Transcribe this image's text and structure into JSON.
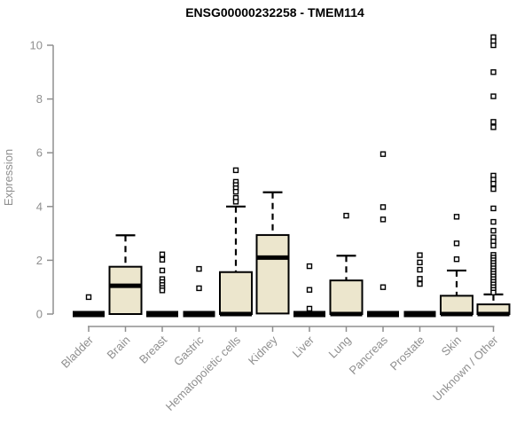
{
  "title": "ENSG00000232258 - TMEM114",
  "chart_data": {
    "type": "boxplot",
    "title": "ENSG00000232258 - TMEM114",
    "ylabel": "Expression",
    "ylim": [
      0,
      10
    ],
    "yticks": [
      0,
      2,
      4,
      6,
      8,
      10
    ],
    "grid": false,
    "legend": "none",
    "colors": {
      "box_fill": "#ece6cd",
      "box_stroke": "#000000",
      "median": "#000000",
      "axis": "#8f8f8f",
      "tick_label": "#8f8f8f",
      "title": "#000000",
      "background": "#ffffff"
    },
    "categories": [
      "Bladder",
      "Brain",
      "Breast",
      "Gastric",
      "Hematopoietic cells",
      "Kidney",
      "Liver",
      "Lung",
      "Pancreas",
      "Prostate",
      "Skin",
      "Unknown / Other"
    ],
    "series": [
      {
        "name": "Bladder",
        "flat": true,
        "q1": 0,
        "median": 0,
        "q3": 0,
        "whisker_low": 0,
        "whisker_high": 0,
        "outliers": [
          0.63
        ]
      },
      {
        "name": "Brain",
        "flat": false,
        "q1": 0,
        "median": 1.05,
        "q3": 1.76,
        "whisker_low": 0,
        "whisker_high": 2.93,
        "outliers": []
      },
      {
        "name": "Breast",
        "flat": true,
        "q1": 0,
        "median": 0,
        "q3": 0,
        "whisker_low": 0,
        "whisker_high": 0,
        "outliers": [
          2.22,
          2.02,
          1.62,
          1.3,
          1.19,
          1.08,
          0.97,
          0.88
        ]
      },
      {
        "name": "Gastric",
        "flat": true,
        "q1": 0,
        "median": 0,
        "q3": 0,
        "whisker_low": 0,
        "whisker_high": 0,
        "outliers": [
          1.68,
          0.96
        ]
      },
      {
        "name": "Hematopoietic cells",
        "flat": false,
        "q1": 0,
        "median": 0,
        "q3": 1.56,
        "whisker_low": 0,
        "whisker_high": 4.0,
        "outliers": [
          5.35,
          4.92,
          4.8,
          4.68,
          4.55,
          4.32,
          4.18
        ]
      },
      {
        "name": "Kidney",
        "flat": false,
        "q1": 0.02,
        "median": 2.1,
        "q3": 2.94,
        "whisker_low": 0,
        "whisker_high": 4.53,
        "outliers": []
      },
      {
        "name": "Liver",
        "flat": true,
        "q1": 0,
        "median": 0,
        "q3": 0,
        "whisker_low": 0,
        "whisker_high": 0,
        "outliers": [
          1.78,
          0.9,
          0.2
        ]
      },
      {
        "name": "Lung",
        "flat": false,
        "q1": 0,
        "median": 0,
        "q3": 1.25,
        "whisker_low": 0,
        "whisker_high": 2.17,
        "outliers": [
          3.66
        ]
      },
      {
        "name": "Pancreas",
        "flat": true,
        "q1": 0,
        "median": 0,
        "q3": 0,
        "whisker_low": 0,
        "whisker_high": 0,
        "outliers": [
          5.95,
          3.98,
          3.52,
          1.0
        ]
      },
      {
        "name": "Prostate",
        "flat": true,
        "q1": 0,
        "median": 0,
        "q3": 0,
        "whisker_low": 0,
        "whisker_high": 0,
        "outliers": [
          2.19,
          1.92,
          1.65,
          1.31,
          1.12
        ]
      },
      {
        "name": "Skin",
        "flat": false,
        "q1": 0,
        "median": 0,
        "q3": 0.68,
        "whisker_low": 0,
        "whisker_high": 1.62,
        "outliers": [
          3.62,
          2.63,
          2.04
        ]
      },
      {
        "name": "Unknown / Other",
        "flat": false,
        "q1": 0,
        "median": 0,
        "q3": 0.36,
        "whisker_low": 0,
        "whisker_high": 0.73,
        "outliers": [
          10.3,
          10.15,
          10.0,
          9.0,
          8.1,
          7.15,
          6.95,
          5.15,
          5.0,
          4.85,
          4.65,
          3.93,
          3.43,
          3.1,
          2.85,
          2.7,
          2.55,
          2.2,
          2.1,
          2.0,
          1.9,
          1.8,
          1.7,
          1.6,
          1.5,
          1.4,
          1.3,
          1.2,
          1.1,
          1.0,
          0.9,
          0.8
        ]
      }
    ]
  }
}
